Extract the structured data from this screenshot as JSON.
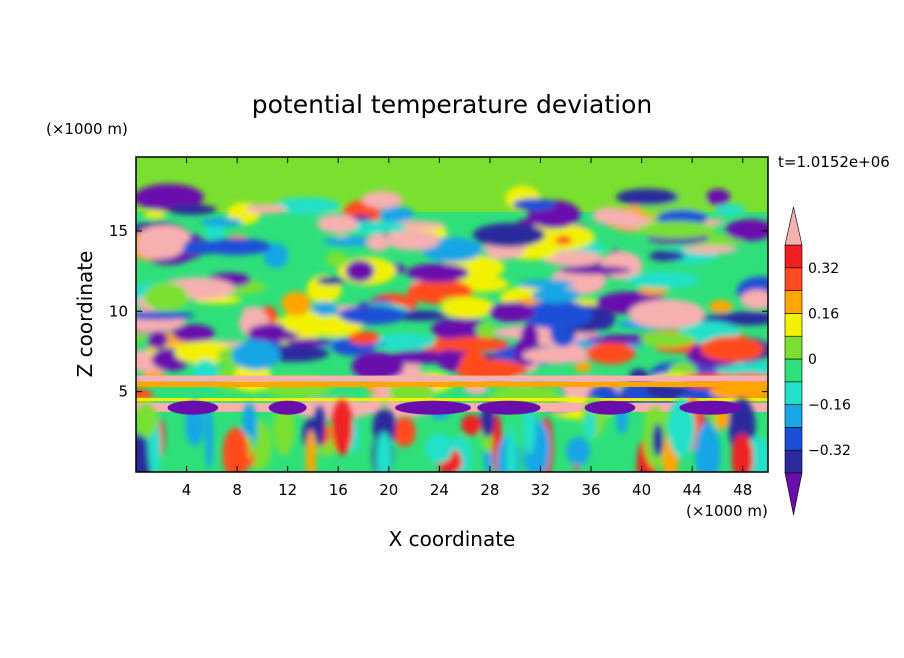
{
  "chart_data": {
    "type": "heatmap",
    "title": "potential temperature deviation",
    "xlabel": "X coordinate",
    "ylabel": "Z coordinate",
    "x_unit": "(×1000 m)",
    "z_unit": "(×1000 m)",
    "time_label": "t=1.0152e+06",
    "xlim": [
      0,
      50
    ],
    "ylim": [
      0,
      19.6
    ],
    "x_ticks": [
      4,
      8,
      12,
      16,
      20,
      24,
      28,
      32,
      36,
      40,
      44,
      48
    ],
    "x_tick_labels": [
      "4",
      "8",
      "12",
      "16",
      "20",
      "24",
      "28",
      "32",
      "36",
      "40",
      "44",
      "48"
    ],
    "y_ticks": [
      5,
      10,
      15
    ],
    "y_tick_labels": [
      "5",
      "10",
      "15"
    ],
    "colorbar": {
      "levels": [
        -0.4,
        -0.32,
        -0.24,
        -0.16,
        -0.08,
        0,
        0.08,
        0.16,
        0.24,
        0.32,
        0.4
      ],
      "colors": [
        "#6a0dad",
        "#2b2b9e",
        "#1a4fd6",
        "#19a6e6",
        "#22e0c9",
        "#2fe07a",
        "#7ae030",
        "#f2f200",
        "#ffa500",
        "#ff4b1f",
        "#ee2020",
        "#f7b0b0"
      ],
      "tick_labels": [
        "0.32",
        "0.16",
        "0",
        "−0.16",
        "−0.32"
      ],
      "tick_values": [
        0.32,
        0.16,
        0,
        -0.16,
        -0.32
      ],
      "extend": "both"
    }
  }
}
